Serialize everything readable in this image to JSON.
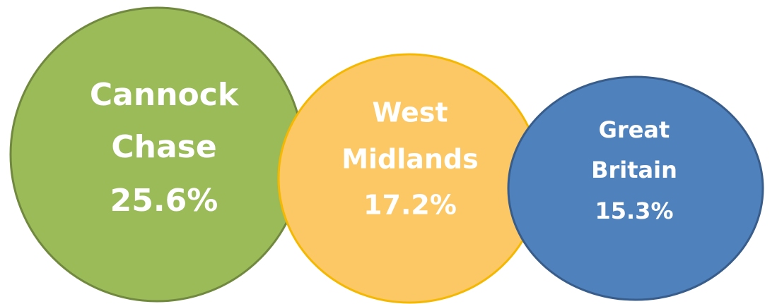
{
  "nodes": [
    {
      "label": [
        "Cannock",
        "Chase"
      ],
      "value": "25.6%"
    },
    {
      "label": [
        "West",
        "Midlands"
      ],
      "value": "17.2%"
    },
    {
      "label": [
        "Great",
        "Britain"
      ],
      "value": "15.3%"
    }
  ]
}
